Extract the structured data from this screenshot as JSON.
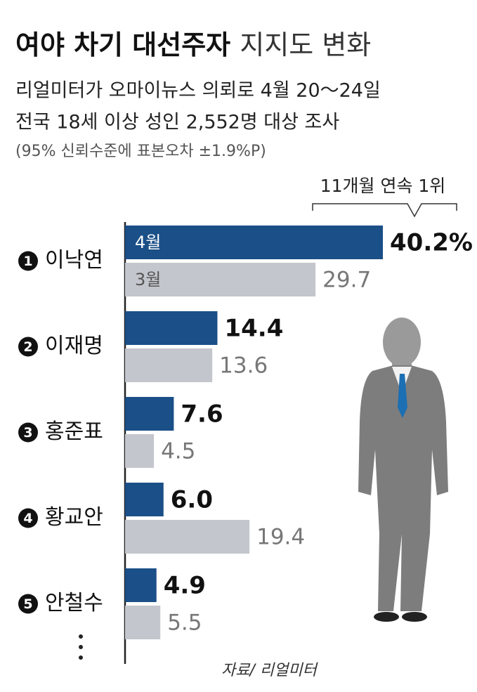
{
  "chart_data": {
    "type": "bar",
    "title": [
      "여야 차기 대선주자",
      "지지도 변화"
    ],
    "subtitle": [
      "리얼미터가 오마이뉴스 의뢰로 4월 20～24일",
      "전국 18세 이상 성인 2,552명 대상 조사",
      "(95% 신뢰수준에 표본오차 ±1.9%P)"
    ],
    "annotation": "11개월 연속 1위",
    "source": "자료/ 리얼미터",
    "ranks": [
      "1",
      "2",
      "3",
      "4",
      "5"
    ],
    "categories": [
      "이낙연",
      "이재명",
      "홍준표",
      "황교안",
      "안철수"
    ],
    "series": [
      {
        "name": "4월",
        "color": "#1b4f87",
        "values": [
          40.2,
          14.4,
          7.6,
          6.0,
          4.9
        ],
        "value_labels": [
          "40.2%",
          "14.4",
          "7.6",
          "6.0",
          "4.9"
        ]
      },
      {
        "name": "3월",
        "color": "#c4c6cd",
        "values": [
          29.7,
          13.6,
          4.5,
          19.4,
          5.5
        ],
        "value_labels": [
          "29.7",
          "13.6",
          "4.5",
          "19.4",
          "5.5"
        ]
      }
    ]
  }
}
